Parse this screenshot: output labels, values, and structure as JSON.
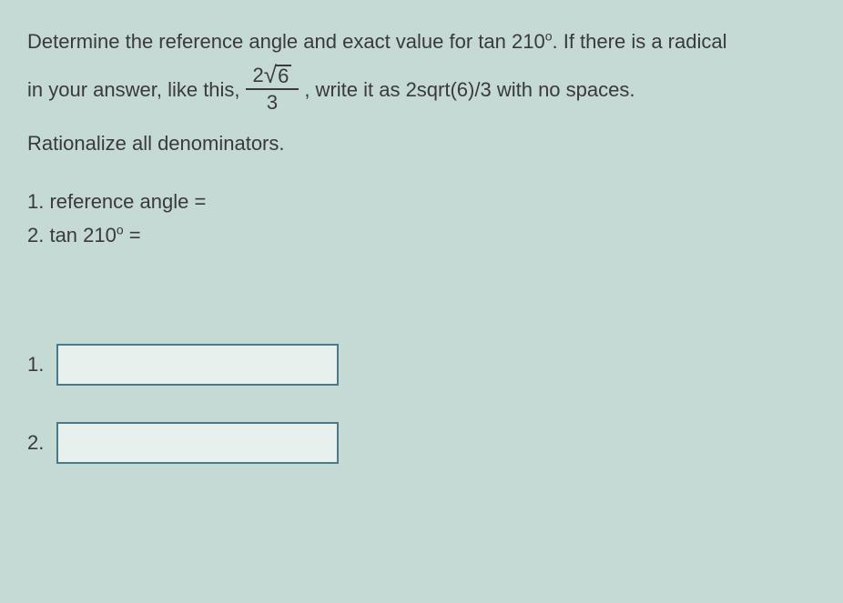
{
  "problem": {
    "line1_part1": "Determine the reference angle and exact value for tan 210",
    "line1_degree": "o",
    "line1_part2": ". If there is a radical",
    "line2_part1": "in your answer, like this,",
    "fraction_num_coeff": "2",
    "fraction_num_radicand": "6",
    "fraction_den": "3",
    "line2_part2": ", write it as 2sqrt(6)/3 with no spaces.",
    "line3": "Rationalize all denominators."
  },
  "prompts": {
    "p1": "1. reference angle =",
    "p2_part1": "2. tan 210",
    "p2_degree": "o",
    "p2_part2": " ="
  },
  "answers": {
    "label1": "1.",
    "value1": "",
    "label2": "2.",
    "value2": ""
  },
  "colors": {
    "background": "#c5d9d5",
    "text": "#3a3a3a",
    "input_border": "#4a7a88",
    "input_bg": "#e8f0ee"
  }
}
